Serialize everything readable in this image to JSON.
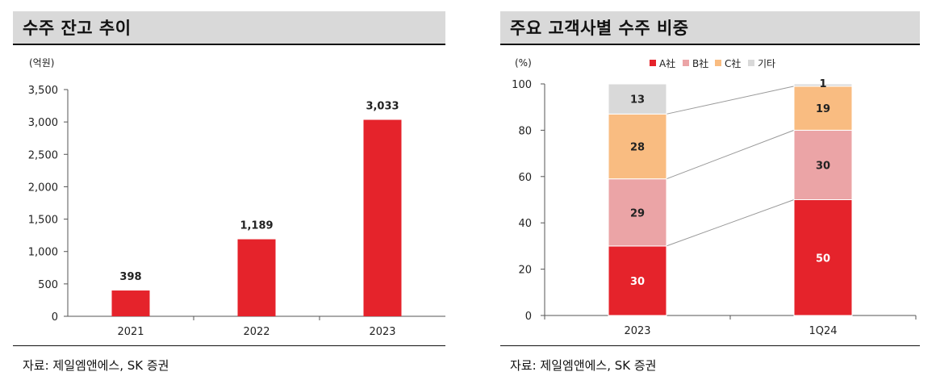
{
  "left_panel": {
    "title": "수주 잔고 추이",
    "source": "자료: 제일엠앤에스, SK 증권"
  },
  "right_panel": {
    "title": "주요 고객사별 수주 비중",
    "source": "자료: 제일엠앤에스, SK 증권"
  },
  "chart_data": [
    {
      "type": "bar",
      "title": "수주 잔고 추이",
      "unit_label": "(억원)",
      "categories": [
        "2021",
        "2022",
        "2023"
      ],
      "values": [
        398,
        1189,
        3033
      ],
      "value_labels": [
        "398",
        "1,189",
        "3,033"
      ],
      "ylim": [
        0,
        3500
      ],
      "yticks": [
        0,
        500,
        1000,
        1500,
        2000,
        2500,
        3000,
        3500
      ],
      "ytick_labels": [
        "0",
        "500",
        "1,000",
        "1,500",
        "2,000",
        "2,500",
        "3,000",
        "3,500"
      ],
      "color": "#e5232b",
      "grid": false
    },
    {
      "type": "bar",
      "stacked": true,
      "title": "주요 고객사별 수주 비중",
      "unit_label": "(%)",
      "categories": [
        "2023",
        "1Q24"
      ],
      "ylim": [
        0,
        100
      ],
      "yticks": [
        0,
        20,
        40,
        60,
        80,
        100
      ],
      "legend_position": "top",
      "series": [
        {
          "name": "A社",
          "values": [
            30,
            50
          ],
          "color": "#e5232b",
          "label_color": "#ffffff"
        },
        {
          "name": "B社",
          "values": [
            29,
            30
          ],
          "color": "#eba4a6",
          "label_color": "#222222"
        },
        {
          "name": "C社",
          "values": [
            28,
            19
          ],
          "color": "#f9bc81",
          "label_color": "#222222"
        },
        {
          "name": "기타",
          "values": [
            13,
            1
          ],
          "color": "#d9d9d9",
          "label_color": "#222222"
        }
      ],
      "grid": false
    }
  ]
}
